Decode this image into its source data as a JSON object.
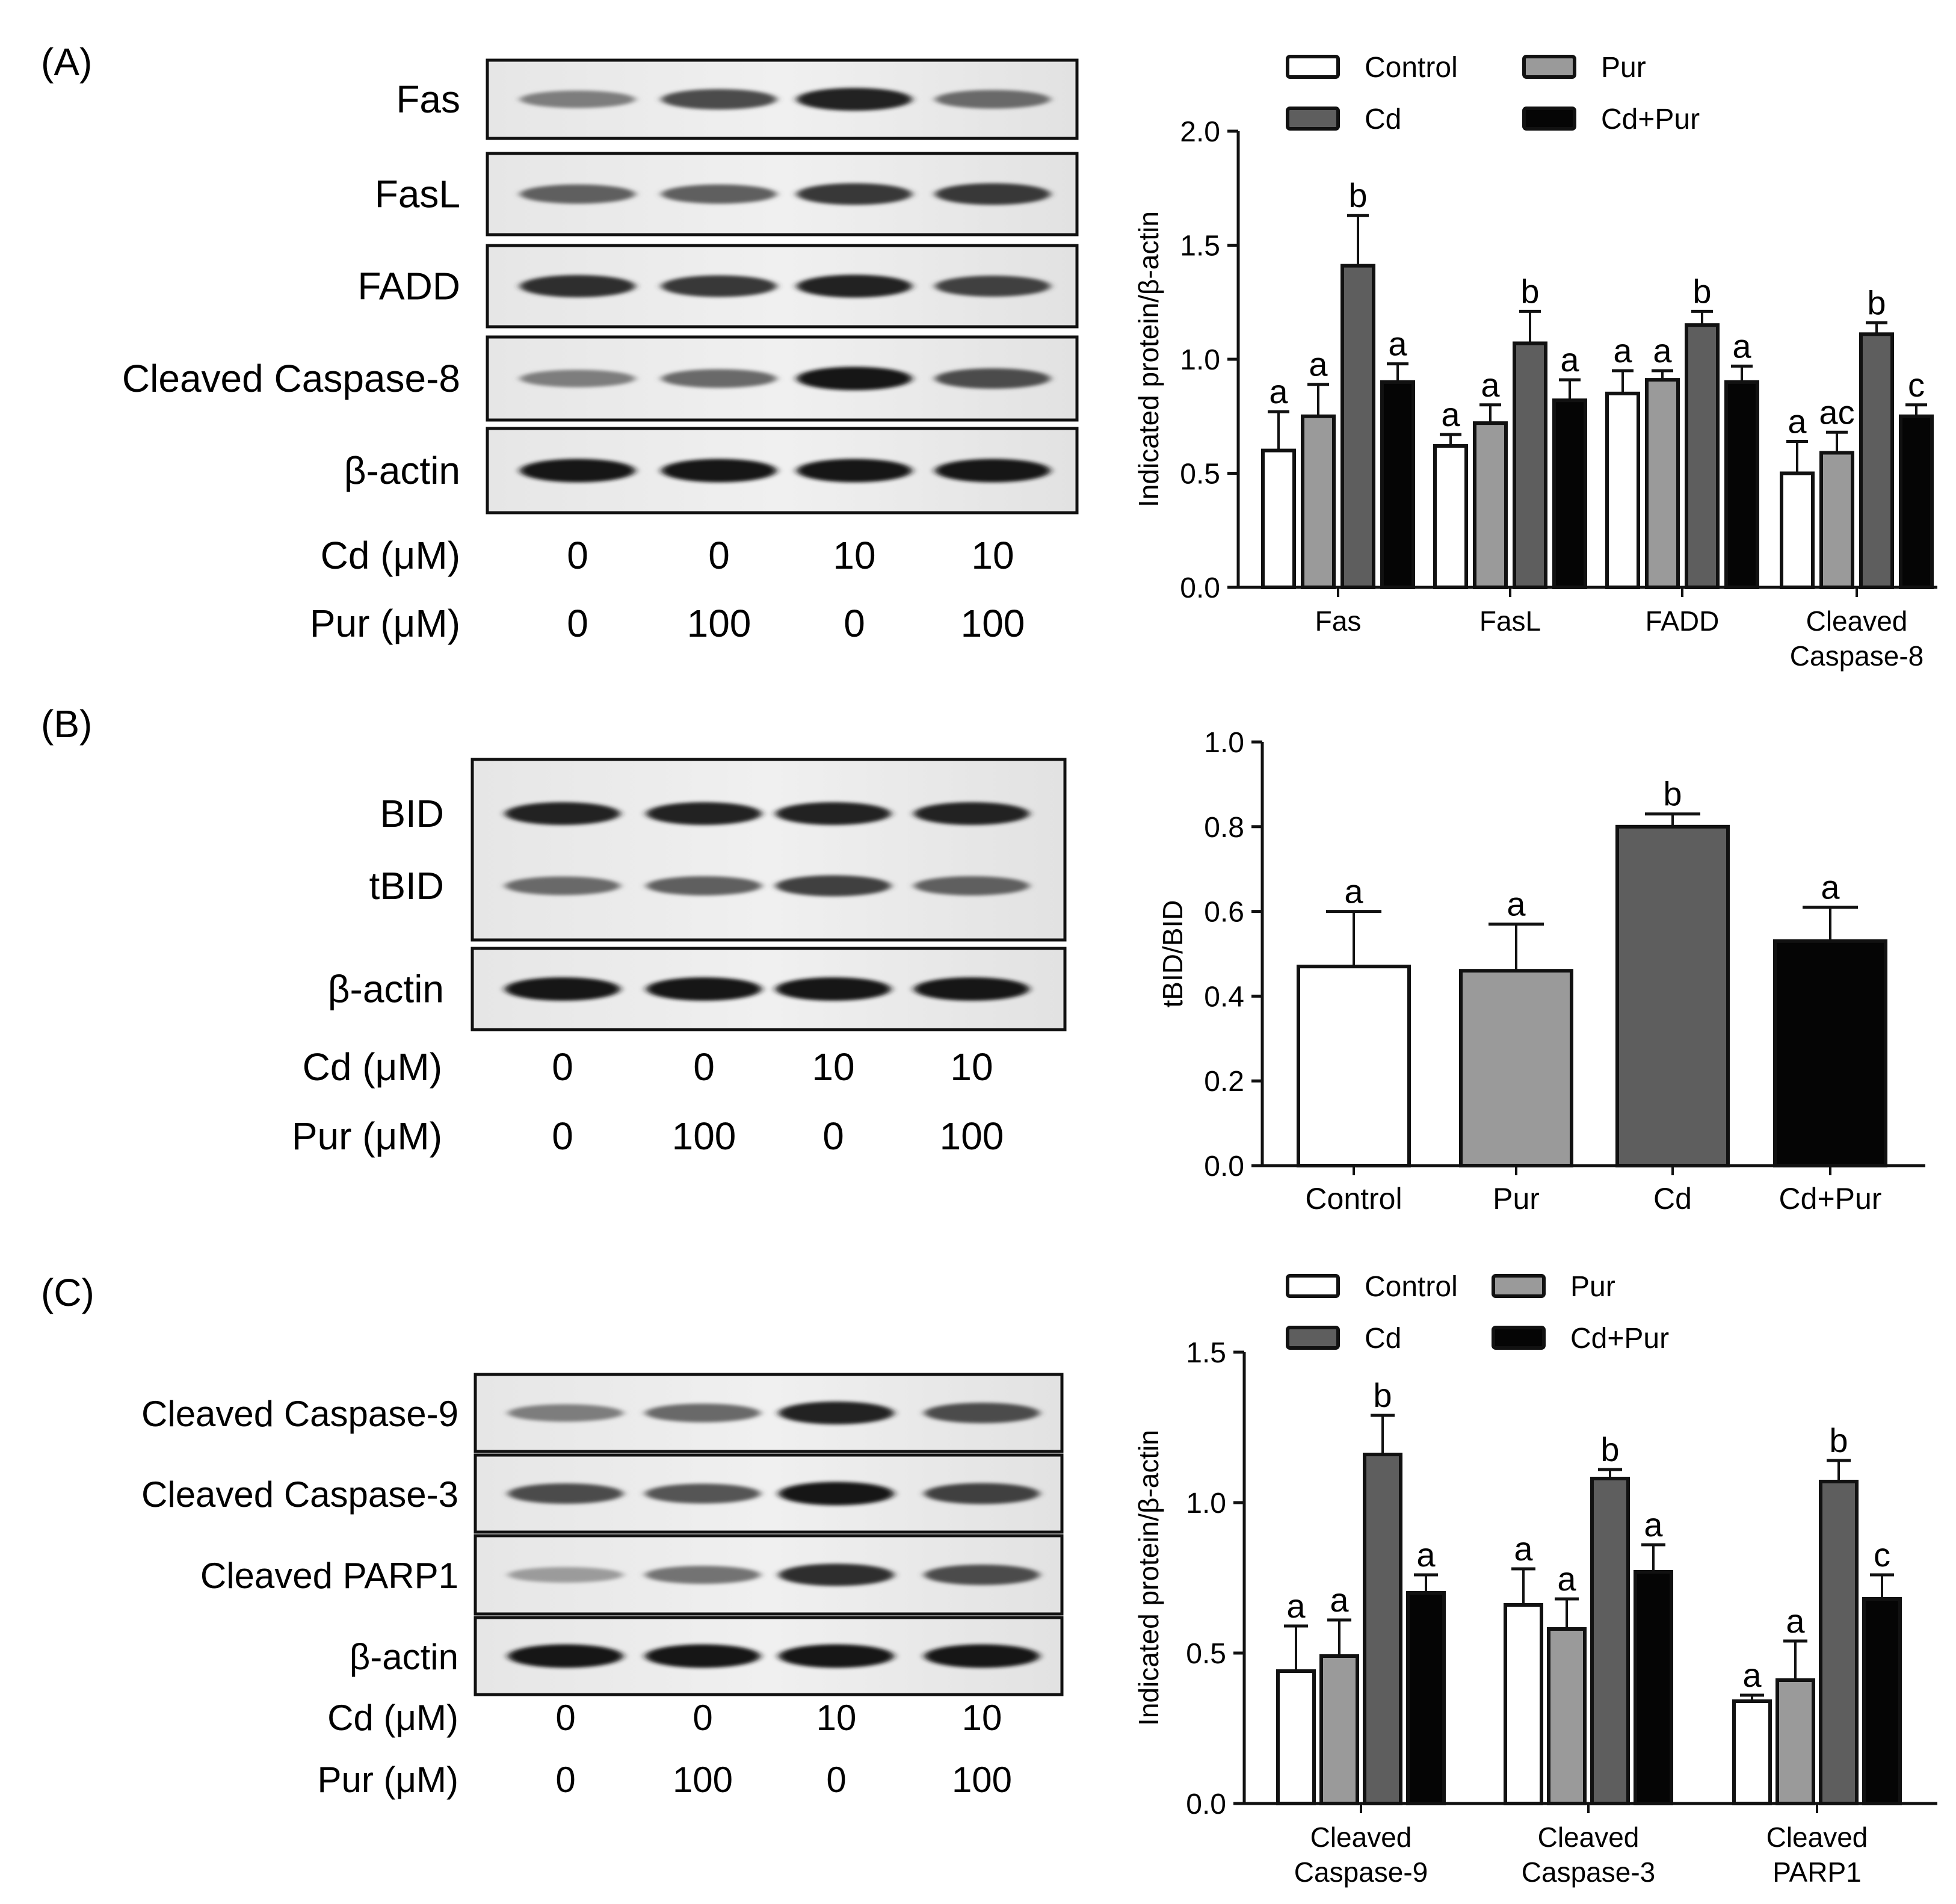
{
  "figure": {
    "groups": [
      "Control",
      "Pur",
      "Cd",
      "Cd+Pur"
    ],
    "group_colors": [
      "#ffffff",
      "#9a9a9a",
      "#5e5e5e",
      "#050505"
    ],
    "blot_dose_rows": [
      {
        "label": "Cd (μM)",
        "values": [
          "0",
          "0",
          "10",
          "10"
        ]
      },
      {
        "label": "Pur (μM)",
        "values": [
          "0",
          "100",
          "0",
          "100"
        ]
      }
    ]
  },
  "panels": [
    {
      "letter": "(A)",
      "blot_rows": [
        {
          "label": "Fas",
          "intensity": [
            0.45,
            0.7,
            0.9,
            0.55
          ]
        },
        {
          "label": "FasL",
          "intensity": [
            0.6,
            0.6,
            0.8,
            0.8
          ]
        },
        {
          "label": "FADD",
          "intensity": [
            0.85,
            0.8,
            0.9,
            0.75
          ]
        },
        {
          "label": "Cleaved Caspase-8",
          "intensity": [
            0.45,
            0.55,
            0.95,
            0.7
          ]
        },
        {
          "label": "β-actin",
          "intensity": [
            0.95,
            0.95,
            0.95,
            0.95
          ]
        }
      ]
    },
    {
      "letter": "(B)",
      "blot_rows": [
        {
          "label": "BID",
          "intensity": [
            0.9,
            0.9,
            0.9,
            0.9
          ]
        },
        {
          "label": "tBID",
          "intensity": [
            0.55,
            0.6,
            0.75,
            0.6
          ]
        },
        {
          "label": "β-actin",
          "intensity": [
            0.95,
            0.95,
            0.95,
            0.95
          ]
        }
      ]
    },
    {
      "letter": "(C)",
      "blot_rows": [
        {
          "label": "Cleaved Caspase-9",
          "intensity": [
            0.45,
            0.55,
            0.9,
            0.7
          ]
        },
        {
          "label": "Cleaved Caspase-3",
          "intensity": [
            0.7,
            0.65,
            0.95,
            0.75
          ]
        },
        {
          "label": "Cleaved PARP1",
          "intensity": [
            0.3,
            0.5,
            0.85,
            0.7
          ]
        },
        {
          "label": "β-actin",
          "intensity": [
            0.95,
            0.95,
            0.95,
            0.95
          ]
        }
      ]
    }
  ],
  "chart_data": [
    {
      "type": "bar",
      "ylabel": "Indicated protein/β-actin",
      "ylim": [
        0,
        2.0
      ],
      "yticks": [
        "0.0",
        "0.5",
        "1.0",
        "1.5",
        "2.0"
      ],
      "legend": "top",
      "categories": [
        [
          "Fas"
        ],
        [
          "FasL"
        ],
        [
          "FADD"
        ],
        [
          "Cleaved",
          "Caspase-8"
        ]
      ],
      "series": [
        {
          "name": "Control",
          "values": [
            0.6,
            0.62,
            0.85,
            0.5
          ],
          "errors": [
            0.17,
            0.05,
            0.1,
            0.14
          ],
          "letters": [
            "a",
            "a",
            "a",
            "a"
          ]
        },
        {
          "name": "Pur",
          "values": [
            0.75,
            0.72,
            0.91,
            0.59
          ],
          "errors": [
            0.14,
            0.08,
            0.04,
            0.09
          ],
          "letters": [
            "a",
            "a",
            "a",
            "ac"
          ]
        },
        {
          "name": "Cd",
          "values": [
            1.41,
            1.07,
            1.15,
            1.11
          ],
          "errors": [
            0.22,
            0.14,
            0.06,
            0.05
          ],
          "letters": [
            "b",
            "b",
            "b",
            "b"
          ]
        },
        {
          "name": "Cd+Pur",
          "values": [
            0.9,
            0.82,
            0.9,
            0.75
          ],
          "errors": [
            0.08,
            0.09,
            0.07,
            0.05
          ],
          "letters": [
            "a",
            "a",
            "a",
            "c"
          ]
        }
      ]
    },
    {
      "type": "bar",
      "ylabel": "tBID/BID",
      "ylim": [
        0,
        1.0
      ],
      "yticks": [
        "0.0",
        "0.2",
        "0.4",
        "0.6",
        "0.8",
        "1.0"
      ],
      "categories": [
        "Control",
        "Pur",
        "Cd",
        "Cd+Pur"
      ],
      "values": [
        0.47,
        0.46,
        0.8,
        0.53
      ],
      "errors": [
        0.13,
        0.11,
        0.03,
        0.08
      ],
      "letters": [
        "a",
        "a",
        "b",
        "a"
      ]
    },
    {
      "type": "bar",
      "ylabel": "Indicated protein/β-actin",
      "ylim": [
        0,
        1.5
      ],
      "yticks": [
        "0.0",
        "0.5",
        "1.0",
        "1.5"
      ],
      "legend": "top",
      "categories": [
        [
          "Cleaved",
          "Caspase-9"
        ],
        [
          "Cleaved",
          "Caspase-3"
        ],
        [
          "Cleaved",
          "PARP1"
        ]
      ],
      "series": [
        {
          "name": "Control",
          "values": [
            0.44,
            0.66,
            0.34
          ],
          "errors": [
            0.15,
            0.12,
            0.02
          ],
          "letters": [
            "a",
            "a",
            "a"
          ]
        },
        {
          "name": "Pur",
          "values": [
            0.49,
            0.58,
            0.41
          ],
          "errors": [
            0.12,
            0.1,
            0.13
          ],
          "letters": [
            "a",
            "a",
            "a"
          ]
        },
        {
          "name": "Cd",
          "values": [
            1.16,
            1.08,
            1.07
          ],
          "errors": [
            0.13,
            0.03,
            0.07
          ],
          "letters": [
            "b",
            "b",
            "b"
          ]
        },
        {
          "name": "Cd+Pur",
          "values": [
            0.7,
            0.77,
            0.68
          ],
          "errors": [
            0.06,
            0.09,
            0.08
          ],
          "letters": [
            "a",
            "a",
            "c"
          ]
        }
      ]
    }
  ]
}
